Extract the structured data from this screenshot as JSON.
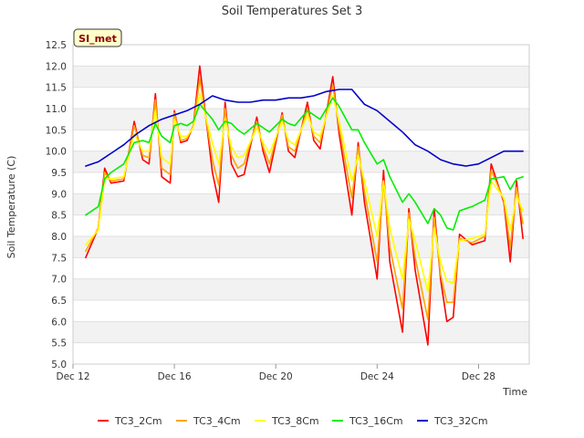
{
  "chart_data": {
    "type": "line",
    "title": "Soil Temperatures Set 3",
    "xlabel": "Time",
    "ylabel": "Soil Temperature (C)",
    "station_tag": "SI_met",
    "x_unit": "date",
    "xlim": [
      "2023-12-12",
      "2023-12-30"
    ],
    "ylim": [
      5.0,
      12.5
    ],
    "yticks": [
      5.0,
      5.5,
      6.0,
      6.5,
      7.0,
      7.5,
      8.0,
      8.5,
      9.0,
      9.5,
      10.0,
      10.5,
      11.0,
      11.5,
      12.0,
      12.5
    ],
    "ytick_labels": [
      "5.0",
      "5.5",
      "6.0",
      "6.5",
      "7.0",
      "7.5",
      "8.0",
      "8.5",
      "9.0",
      "9.5",
      "10.0",
      "10.5",
      "11.0",
      "11.5",
      "12.0",
      "12.5"
    ],
    "xticks": [
      "2023-12-12",
      "2023-12-16",
      "2023-12-20",
      "2023-12-24",
      "2023-12-28"
    ],
    "xtick_labels": [
      "Dec 12",
      "Dec 16",
      "Dec 20",
      "Dec 24",
      "Dec 28"
    ],
    "grid": "horizontal alternating bands",
    "legend_position": "bottom",
    "series": [
      {
        "name": "TC3_2Cm",
        "color": "#ff0000",
        "x": [
          "2023-12-12 12:00",
          "2023-12-13 00:00",
          "2023-12-13 06:00",
          "2023-12-13 12:00",
          "2023-12-14 00:00",
          "2023-12-14 10:00",
          "2023-12-14 18:00",
          "2023-12-15 00:00",
          "2023-12-15 06:00",
          "2023-12-15 12:00",
          "2023-12-15 20:00",
          "2023-12-16 00:00",
          "2023-12-16 06:00",
          "2023-12-16 12:00",
          "2023-12-16 18:00",
          "2023-12-17 00:00",
          "2023-12-17 12:00",
          "2023-12-17 18:00",
          "2023-12-18 00:00",
          "2023-12-18 06:00",
          "2023-12-18 12:00",
          "2023-12-18 18:00",
          "2023-12-19 06:00",
          "2023-12-19 12:00",
          "2023-12-19 18:00",
          "2023-12-20 06:00",
          "2023-12-20 12:00",
          "2023-12-20 18:00",
          "2023-12-21 06:00",
          "2023-12-21 12:00",
          "2023-12-21 18:00",
          "2023-12-22 06:00",
          "2023-12-22 12:00",
          "2023-12-23 00:00",
          "2023-12-23 06:00",
          "2023-12-23 12:00",
          "2023-12-24 00:00",
          "2023-12-24 06:00",
          "2023-12-24 12:00",
          "2023-12-25 00:00",
          "2023-12-25 06:00",
          "2023-12-25 12:00",
          "2023-12-26 00:00",
          "2023-12-26 06:00",
          "2023-12-26 12:00",
          "2023-12-26 18:00",
          "2023-12-27 00:00",
          "2023-12-27 06:00",
          "2023-12-27 18:00",
          "2023-12-28 06:00",
          "2023-12-28 12:00",
          "2023-12-29 00:00",
          "2023-12-29 06:00",
          "2023-12-29 12:00",
          "2023-12-29 18:00"
        ],
        "values": [
          7.5,
          8.2,
          9.6,
          9.25,
          9.3,
          10.7,
          9.8,
          9.7,
          11.35,
          9.4,
          9.25,
          10.95,
          10.2,
          10.25,
          10.6,
          12.0,
          9.5,
          8.8,
          11.15,
          9.7,
          9.4,
          9.45,
          10.8,
          10.0,
          9.5,
          10.9,
          10.0,
          9.85,
          11.15,
          10.25,
          10.05,
          11.75,
          10.4,
          8.5,
          10.2,
          8.8,
          7.0,
          9.55,
          7.4,
          5.75,
          8.65,
          7.2,
          5.45,
          8.65,
          7.0,
          6.0,
          6.1,
          8.05,
          7.8,
          7.9,
          9.7,
          8.8,
          7.4,
          9.3,
          7.95
        ]
      },
      {
        "name": "TC3_4Cm",
        "color": "#ffa500",
        "x": [
          "2023-12-12 12:00",
          "2023-12-13 00:00",
          "2023-12-13 06:00",
          "2023-12-13 12:00",
          "2023-12-14 00:00",
          "2023-12-14 10:00",
          "2023-12-14 18:00",
          "2023-12-15 00:00",
          "2023-12-15 06:00",
          "2023-12-15 12:00",
          "2023-12-15 20:00",
          "2023-12-16 00:00",
          "2023-12-16 06:00",
          "2023-12-16 12:00",
          "2023-12-16 18:00",
          "2023-12-17 00:00",
          "2023-12-17 12:00",
          "2023-12-17 18:00",
          "2023-12-18 00:00",
          "2023-12-18 06:00",
          "2023-12-18 12:00",
          "2023-12-18 18:00",
          "2023-12-19 06:00",
          "2023-12-19 12:00",
          "2023-12-19 18:00",
          "2023-12-20 06:00",
          "2023-12-20 12:00",
          "2023-12-20 18:00",
          "2023-12-21 06:00",
          "2023-12-21 12:00",
          "2023-12-21 18:00",
          "2023-12-22 06:00",
          "2023-12-22 12:00",
          "2023-12-23 00:00",
          "2023-12-23 06:00",
          "2023-12-23 12:00",
          "2023-12-24 00:00",
          "2023-12-24 06:00",
          "2023-12-24 12:00",
          "2023-12-25 00:00",
          "2023-12-25 06:00",
          "2023-12-25 12:00",
          "2023-12-26 00:00",
          "2023-12-26 06:00",
          "2023-12-26 12:00",
          "2023-12-26 18:00",
          "2023-12-27 00:00",
          "2023-12-27 06:00",
          "2023-12-27 18:00",
          "2023-12-28 06:00",
          "2023-12-28 12:00",
          "2023-12-29 00:00",
          "2023-12-29 06:00",
          "2023-12-29 12:00",
          "2023-12-29 18:00"
        ],
        "values": [
          7.65,
          8.2,
          9.5,
          9.3,
          9.35,
          10.6,
          9.9,
          9.85,
          11.2,
          9.6,
          9.45,
          10.9,
          10.25,
          10.3,
          10.6,
          11.7,
          9.8,
          9.2,
          11.0,
          9.9,
          9.6,
          9.7,
          10.7,
          10.1,
          9.7,
          10.85,
          10.1,
          10.0,
          11.0,
          10.35,
          10.2,
          11.55,
          10.55,
          8.9,
          10.1,
          9.05,
          7.4,
          9.3,
          7.75,
          6.3,
          8.55,
          7.5,
          6.05,
          8.45,
          7.1,
          6.45,
          6.45,
          7.95,
          7.85,
          8.0,
          9.55,
          8.85,
          7.75,
          9.15,
          8.3
        ]
      },
      {
        "name": "TC3_8Cm",
        "color": "#ffff00",
        "x": [
          "2023-12-12 12:00",
          "2023-12-13 00:00",
          "2023-12-13 06:00",
          "2023-12-13 12:00",
          "2023-12-14 00:00",
          "2023-12-14 10:00",
          "2023-12-14 18:00",
          "2023-12-15 00:00",
          "2023-12-15 06:00",
          "2023-12-15 12:00",
          "2023-12-15 20:00",
          "2023-12-16 00:00",
          "2023-12-16 06:00",
          "2023-12-16 12:00",
          "2023-12-16 18:00",
          "2023-12-17 00:00",
          "2023-12-17 12:00",
          "2023-12-17 18:00",
          "2023-12-18 00:00",
          "2023-12-18 06:00",
          "2023-12-18 12:00",
          "2023-12-18 18:00",
          "2023-12-19 06:00",
          "2023-12-19 12:00",
          "2023-12-19 18:00",
          "2023-12-20 06:00",
          "2023-12-20 12:00",
          "2023-12-20 18:00",
          "2023-12-21 06:00",
          "2023-12-21 12:00",
          "2023-12-21 18:00",
          "2023-12-22 06:00",
          "2023-12-22 12:00",
          "2023-12-23 00:00",
          "2023-12-23 06:00",
          "2023-12-23 12:00",
          "2023-12-24 00:00",
          "2023-12-24 06:00",
          "2023-12-24 12:00",
          "2023-12-25 00:00",
          "2023-12-25 06:00",
          "2023-12-25 12:00",
          "2023-12-26 00:00",
          "2023-12-26 06:00",
          "2023-12-26 12:00",
          "2023-12-26 18:00",
          "2023-12-27 00:00",
          "2023-12-27 06:00",
          "2023-12-27 18:00",
          "2023-12-28 06:00",
          "2023-12-28 12:00",
          "2023-12-29 00:00",
          "2023-12-29 06:00",
          "2023-12-29 12:00",
          "2023-12-29 18:00"
        ],
        "values": [
          7.8,
          8.15,
          9.35,
          9.35,
          9.4,
          10.4,
          10.0,
          10.0,
          10.95,
          9.85,
          9.7,
          10.75,
          10.35,
          10.35,
          10.55,
          11.35,
          10.2,
          9.7,
          10.75,
          10.1,
          9.85,
          9.9,
          10.55,
          10.2,
          9.95,
          10.7,
          10.25,
          10.15,
          10.85,
          10.45,
          10.35,
          11.3,
          10.7,
          9.3,
          9.9,
          9.3,
          8.0,
          9.3,
          8.2,
          7.0,
          8.4,
          7.9,
          6.7,
          8.2,
          7.4,
          6.95,
          6.9,
          7.9,
          7.95,
          8.05,
          9.3,
          8.9,
          8.15,
          8.95,
          8.6
        ]
      },
      {
        "name": "TC3_16Cm",
        "color": "#00ee00",
        "x": [
          "2023-12-12 12:00",
          "2023-12-13 00:00",
          "2023-12-13 06:00",
          "2023-12-13 12:00",
          "2023-12-14 00:00",
          "2023-12-14 10:00",
          "2023-12-14 18:00",
          "2023-12-15 00:00",
          "2023-12-15 06:00",
          "2023-12-15 12:00",
          "2023-12-15 20:00",
          "2023-12-16 00:00",
          "2023-12-16 06:00",
          "2023-12-16 12:00",
          "2023-12-16 18:00",
          "2023-12-17 00:00",
          "2023-12-17 12:00",
          "2023-12-17 18:00",
          "2023-12-18 00:00",
          "2023-12-18 06:00",
          "2023-12-18 12:00",
          "2023-12-18 18:00",
          "2023-12-19 06:00",
          "2023-12-19 12:00",
          "2023-12-19 18:00",
          "2023-12-20 06:00",
          "2023-12-20 12:00",
          "2023-12-20 18:00",
          "2023-12-21 06:00",
          "2023-12-21 12:00",
          "2023-12-21 18:00",
          "2023-12-22 06:00",
          "2023-12-22 12:00",
          "2023-12-23 00:00",
          "2023-12-23 06:00",
          "2023-12-23 12:00",
          "2023-12-24 00:00",
          "2023-12-24 06:00",
          "2023-12-24 12:00",
          "2023-12-25 00:00",
          "2023-12-25 06:00",
          "2023-12-25 12:00",
          "2023-12-26 00:00",
          "2023-12-26 06:00",
          "2023-12-26 12:00",
          "2023-12-26 18:00",
          "2023-12-27 00:00",
          "2023-12-27 06:00",
          "2023-12-27 18:00",
          "2023-12-28 06:00",
          "2023-12-28 12:00",
          "2023-12-29 00:00",
          "2023-12-29 06:00",
          "2023-12-29 12:00",
          "2023-12-29 18:00"
        ],
        "values": [
          8.5,
          8.7,
          9.35,
          9.5,
          9.7,
          10.2,
          10.25,
          10.2,
          10.65,
          10.35,
          10.2,
          10.6,
          10.65,
          10.6,
          10.7,
          11.1,
          10.75,
          10.5,
          10.7,
          10.65,
          10.5,
          10.4,
          10.65,
          10.55,
          10.45,
          10.75,
          10.65,
          10.6,
          10.95,
          10.85,
          10.75,
          11.25,
          11.05,
          10.5,
          10.5,
          10.2,
          9.7,
          9.8,
          9.4,
          8.8,
          9.0,
          8.8,
          8.3,
          8.65,
          8.5,
          8.2,
          8.15,
          8.6,
          8.7,
          8.85,
          9.35,
          9.4,
          9.1,
          9.35,
          9.4
        ]
      },
      {
        "name": "TC3_32Cm",
        "color": "#0000cd",
        "x": [
          "2023-12-12 12:00",
          "2023-12-13 00:00",
          "2023-12-13 12:00",
          "2023-12-14 00:00",
          "2023-12-14 12:00",
          "2023-12-15 00:00",
          "2023-12-15 12:00",
          "2023-12-16 00:00",
          "2023-12-16 12:00",
          "2023-12-17 00:00",
          "2023-12-17 12:00",
          "2023-12-18 00:00",
          "2023-12-18 12:00",
          "2023-12-19 00:00",
          "2023-12-19 12:00",
          "2023-12-20 00:00",
          "2023-12-20 12:00",
          "2023-12-21 00:00",
          "2023-12-21 12:00",
          "2023-12-22 00:00",
          "2023-12-22 12:00",
          "2023-12-23 00:00",
          "2023-12-23 12:00",
          "2023-12-24 00:00",
          "2023-12-24 12:00",
          "2023-12-25 00:00",
          "2023-12-25 12:00",
          "2023-12-26 00:00",
          "2023-12-26 12:00",
          "2023-12-27 00:00",
          "2023-12-27 12:00",
          "2023-12-28 00:00",
          "2023-12-28 12:00",
          "2023-12-29 00:00",
          "2023-12-29 12:00",
          "2023-12-29 18:00"
        ],
        "values": [
          9.65,
          9.75,
          9.95,
          10.15,
          10.4,
          10.6,
          10.75,
          10.85,
          10.95,
          11.1,
          11.3,
          11.2,
          11.15,
          11.15,
          11.2,
          11.2,
          11.25,
          11.25,
          11.3,
          11.4,
          11.45,
          11.45,
          11.1,
          10.95,
          10.7,
          10.45,
          10.15,
          10.0,
          9.8,
          9.7,
          9.65,
          9.7,
          9.85,
          10.0,
          10.0,
          10.0
        ]
      }
    ]
  }
}
